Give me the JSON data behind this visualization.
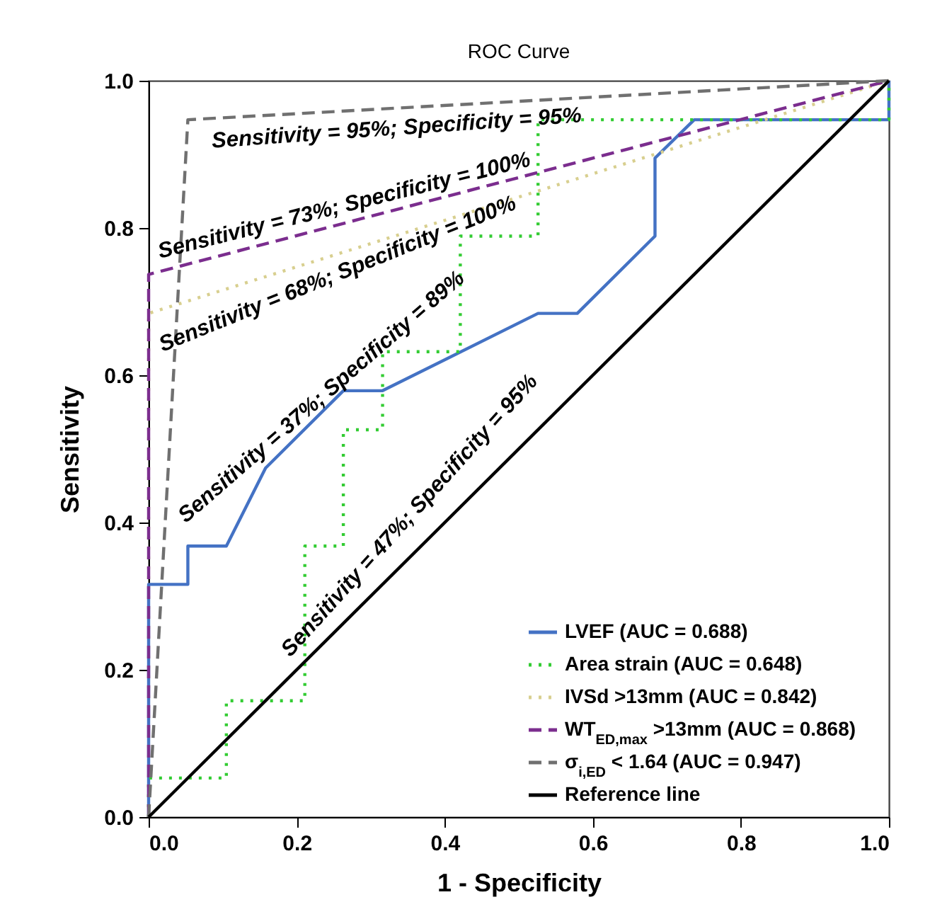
{
  "chart_data": {
    "type": "line",
    "title": "ROC Curve",
    "xlabel": "1 - Specificity",
    "ylabel": "Sensitivity",
    "xlim": [
      0,
      1
    ],
    "ylim": [
      0,
      1
    ],
    "xticks": [
      {
        "value": 0,
        "label": "0.0"
      },
      {
        "value": 0.2,
        "label": "0.2"
      },
      {
        "value": 0.4,
        "label": "0.4"
      },
      {
        "value": 0.6,
        "label": "0.6"
      },
      {
        "value": 0.8,
        "label": "0.8"
      },
      {
        "value": 1,
        "label": "1.0"
      }
    ],
    "yticks": [
      {
        "value": 0,
        "label": "0.0"
      },
      {
        "value": 0.2,
        "label": "0.2"
      },
      {
        "value": 0.4,
        "label": "0.4"
      },
      {
        "value": 0.6,
        "label": "0.6"
      },
      {
        "value": 0.8,
        "label": "0.8"
      },
      {
        "value": 1,
        "label": "1.0"
      }
    ],
    "grid": false,
    "legend": "bottom right",
    "marker": "none",
    "series": [
      {
        "name": "LVEF (AUC = 0.688)",
        "color": "#4472c4",
        "line_style": "solid",
        "x": [
          0,
          0,
          0.053,
          0.053,
          0.105,
          0.158,
          0.263,
          0.316,
          0.526,
          0.579,
          0.684,
          0.684,
          0.737,
          1,
          1
        ],
        "values": [
          0,
          0.316,
          0.316,
          0.368,
          0.368,
          0.474,
          0.579,
          0.579,
          0.684,
          0.684,
          0.789,
          0.895,
          0.947,
          0.947,
          1
        ]
      },
      {
        "name": "Area strain (AUC = 0.648)",
        "color": "#33cc33",
        "line_style": "dotted",
        "x": [
          0,
          0,
          0.105,
          0.105,
          0.211,
          0.211,
          0.263,
          0.263,
          0.316,
          0.316,
          0.421,
          0.421,
          0.526,
          0.526,
          1,
          1
        ],
        "values": [
          0,
          0.053,
          0.053,
          0.158,
          0.158,
          0.368,
          0.368,
          0.526,
          0.526,
          0.632,
          0.632,
          0.789,
          0.789,
          0.947,
          0.947,
          1
        ]
      },
      {
        "name": "IVSd >13mm (AUC = 0.842)",
        "color": "#d8cf8f",
        "line_style": "dotted",
        "x": [
          0,
          0,
          1
        ],
        "values": [
          0,
          0.684,
          1
        ]
      },
      {
        "name": "WT$_{ED,max}$ >13mm (AUC = 0.868)",
        "color": "#7b2d8e",
        "line_style": "dashed",
        "x": [
          0,
          0,
          1
        ],
        "values": [
          0,
          0.737,
          1
        ]
      },
      {
        "name": "σ$_{i,ED}$ < 1.64 (AUC = 0.947)",
        "color": "#707070",
        "line_style": "dashed",
        "x": [
          0,
          0.053,
          1
        ],
        "values": [
          0,
          0.947,
          1
        ]
      },
      {
        "name": "Reference line",
        "color": "#000000",
        "line_style": "solid",
        "x": [
          0,
          1
        ],
        "values": [
          0,
          1
        ]
      }
    ],
    "annotations": [
      "Sensitivity = 95%; Specificity = 95%",
      "Sensitivity = 73%; Specificity = 100%",
      "Sensitivity = 68%; Specificity = 100%",
      "Sensitivity = 37%; Specificity = 89%",
      "Sensitivity = 47%; Specificity = 95%"
    ]
  }
}
